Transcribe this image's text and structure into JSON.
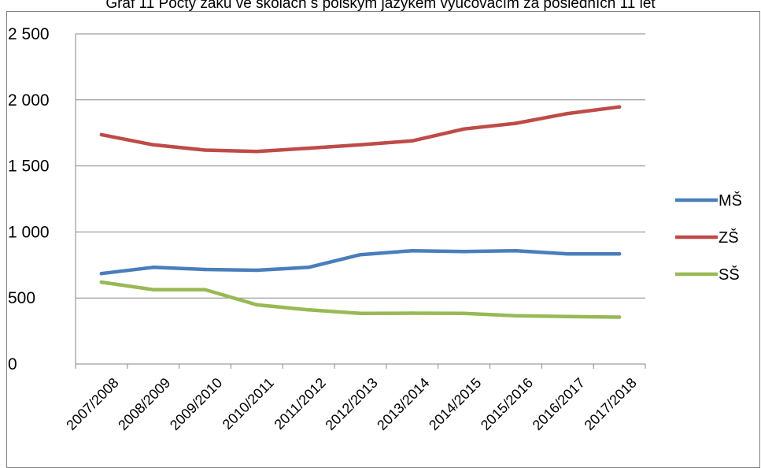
{
  "chart_data": {
    "type": "line",
    "title": "Graf 11 Počty žáků ve školách s polským jazykem vyučovacím za posledních 11 let",
    "categories": [
      "2007/2008",
      "2008/2009",
      "2009/2010",
      "2010/2011",
      "2011/2012",
      "2012/2013",
      "2013/2014",
      "2014/2015",
      "2015/2016",
      "2016/2017",
      "2017/2018"
    ],
    "ylim": [
      0,
      2500
    ],
    "yticks": [
      0,
      500,
      1000,
      1500,
      2000,
      2500
    ],
    "ytick_labels": [
      "0",
      "500",
      "1 000",
      "1 500",
      "2 000",
      "2 500"
    ],
    "grid": "horizontal",
    "legend_position": "right",
    "series": [
      {
        "name": "MŠ",
        "color": "#4a7ebb",
        "values": [
          685,
          732,
          716,
          710,
          732,
          828,
          858,
          852,
          858,
          834,
          834
        ]
      },
      {
        "name": "ZŠ",
        "color": "#be4b48",
        "values": [
          1737,
          1660,
          1620,
          1610,
          1634,
          1660,
          1690,
          1780,
          1823,
          1897,
          1947
        ]
      },
      {
        "name": "SŠ",
        "color": "#98b954",
        "values": [
          620,
          563,
          563,
          448,
          410,
          383,
          385,
          383,
          365,
          360,
          355
        ]
      }
    ]
  }
}
